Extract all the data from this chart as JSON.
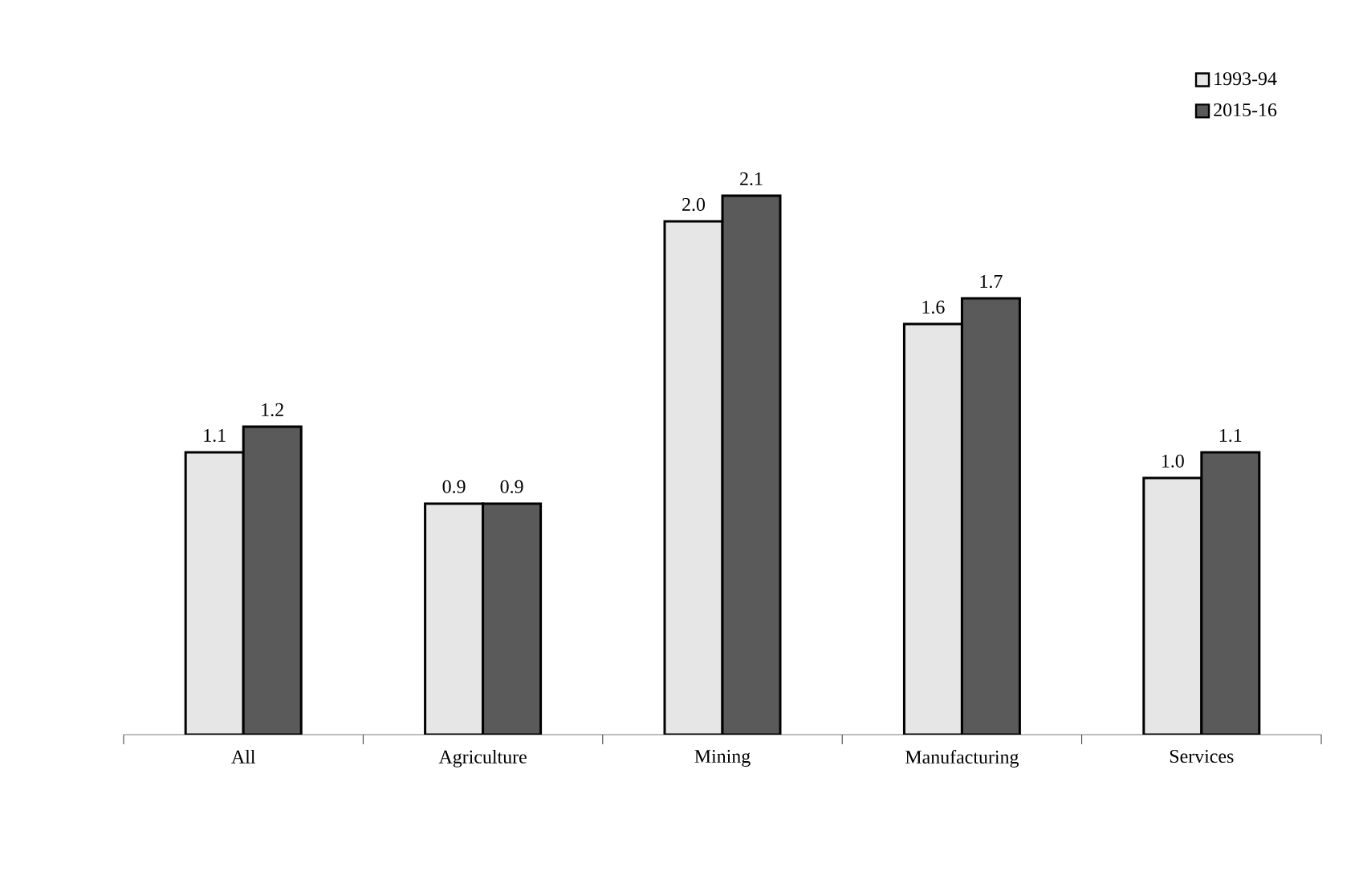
{
  "chart_data": {
    "type": "bar",
    "categories": [
      "All",
      "Agriculture",
      "Mining",
      "Manufacturing",
      "Services"
    ],
    "series": [
      {
        "name": "1993-94",
        "color": "#e6e6e6",
        "values": [
          1.1,
          0.9,
          2.0,
          1.6,
          1.0
        ],
        "value_labels": [
          "1.1",
          "0.9",
          "2.0",
          "1.6",
          "1.0"
        ]
      },
      {
        "name": "2015-16",
        "color": "#5a5a5a",
        "values": [
          1.2,
          0.9,
          2.1,
          1.7,
          1.1
        ],
        "value_labels": [
          "1.2",
          "0.9",
          "2.1",
          "1.7",
          "1.1"
        ]
      }
    ],
    "legend": "top right",
    "tick_labels": "x"
  }
}
